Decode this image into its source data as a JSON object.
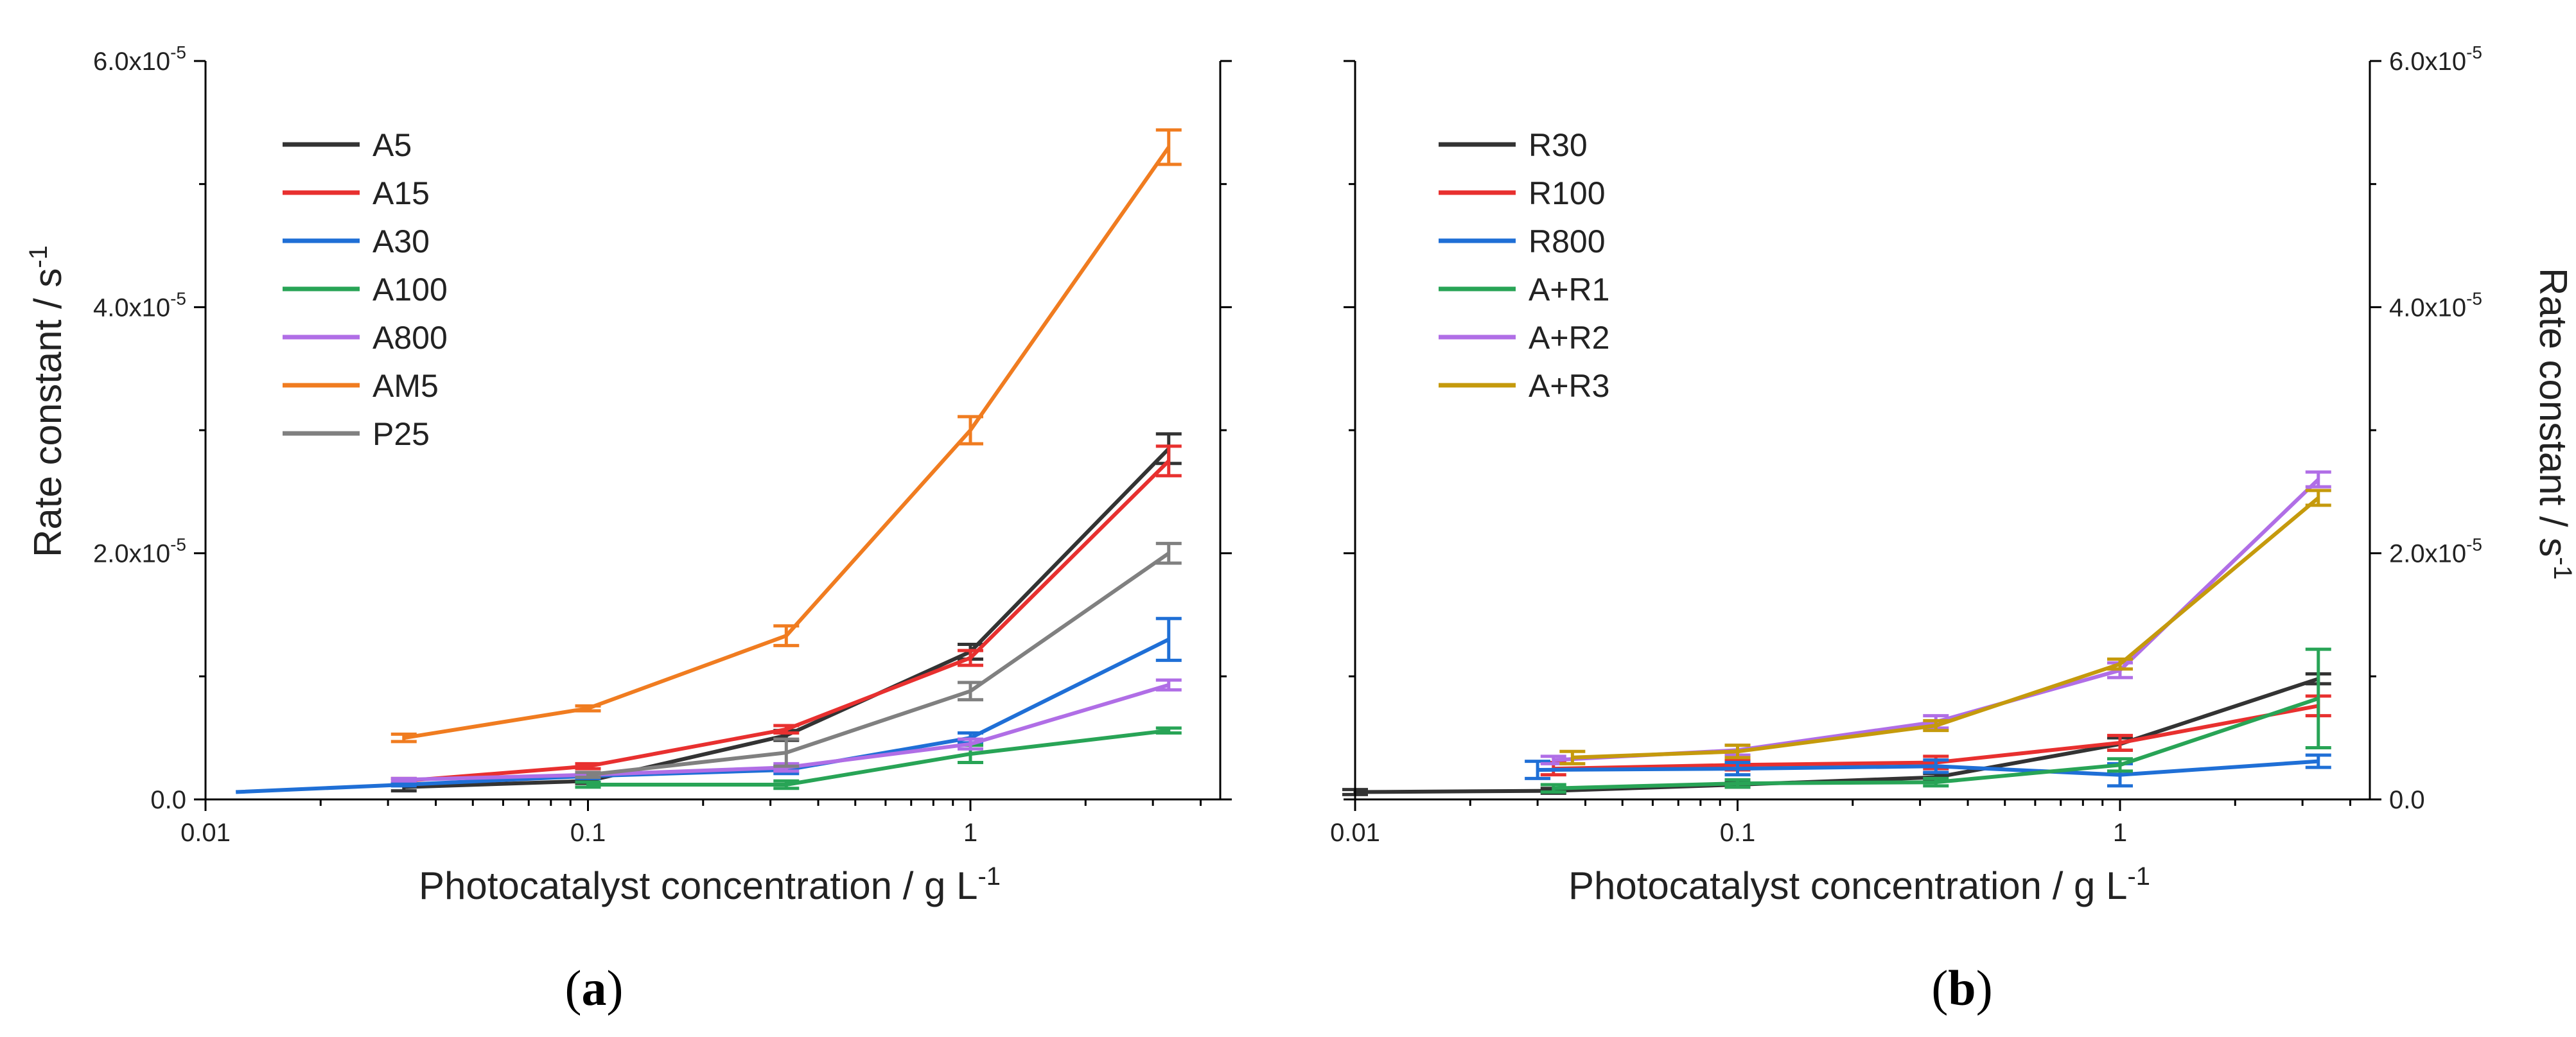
{
  "chart_data": [
    {
      "type": "line",
      "panel_label_open": "(",
      "panel_label_letter": "a",
      "panel_label_close": ")",
      "xlabel": "Photocatalyst concentration / g L",
      "xlabel_sup": "-1",
      "ylabel": "Rate constant / s",
      "ylabel_sup": "-1",
      "x_scale": "log",
      "xlim": [
        0.01,
        4.5
      ],
      "ylim": [
        0,
        6e-05
      ],
      "x_ticks": [
        {
          "v": 0.01,
          "label": "0.01"
        },
        {
          "v": 0.1,
          "label": "0.1"
        },
        {
          "v": 1,
          "label": "1"
        }
      ],
      "y_ticks": [
        {
          "v": 0,
          "label": "0.0",
          "sup": ""
        },
        {
          "v": 2e-05,
          "label": "2.0x10",
          "sup": "-5"
        },
        {
          "v": 4e-05,
          "label": "4.0x10",
          "sup": "-5"
        },
        {
          "v": 6e-05,
          "label": "6.0x10",
          "sup": "-5"
        }
      ],
      "y_axis_side": "left",
      "legend_position": "top-left",
      "series": [
        {
          "name": "A5",
          "color": "#333333",
          "x": [
            0.033,
            0.1,
            0.33,
            1,
            3.3
          ],
          "values": [
            1e-06,
            1.5e-06,
            5.2e-06,
            1.2e-05,
            2.85e-05
          ],
          "err": [
            3e-07,
            2e-07,
            4e-07,
            6e-07,
            1.2e-06
          ]
        },
        {
          "name": "A15",
          "color": "#e8302f",
          "x": [
            0.033,
            0.1,
            0.33,
            1,
            3.3
          ],
          "values": [
            1.5e-06,
            2.7e-06,
            5.7e-06,
            1.15e-05,
            2.75e-05
          ],
          "err": [
            2e-07,
            2e-07,
            3e-07,
            6e-07,
            1.2e-06
          ]
        },
        {
          "name": "A30",
          "color": "#1f6fd6",
          "x": [
            0.012,
            0.033,
            0.1,
            0.33,
            1,
            3.3
          ],
          "values": [
            6e-07,
            1.2e-06,
            1.9e-06,
            2.4e-06,
            5e-06,
            1.3e-05
          ],
          "err": [
            0,
            1e-07,
            2e-07,
            3e-07,
            4e-07,
            1.7e-06
          ]
        },
        {
          "name": "A100",
          "color": "#28a456",
          "x": [
            0.1,
            0.33,
            1,
            3.3
          ],
          "values": [
            1.2e-06,
            1.2e-06,
            3.7e-06,
            5.6e-06
          ],
          "err": [
            2e-07,
            3e-07,
            7e-07,
            2e-07
          ]
        },
        {
          "name": "A800",
          "color": "#b06ee6",
          "x": [
            0.033,
            0.1,
            0.33,
            1,
            3.3
          ],
          "values": [
            1.6e-06,
            2e-06,
            2.6e-06,
            4.5e-06,
            9.3e-06
          ],
          "err": [
            1e-07,
            2e-07,
            3e-07,
            4e-07,
            4e-07
          ]
        },
        {
          "name": "AM5",
          "color": "#f07c20",
          "x": [
            0.033,
            0.1,
            0.33,
            1,
            3.3
          ],
          "values": [
            5e-06,
            7.4e-06,
            1.33e-05,
            3e-05,
            5.3e-05
          ],
          "err": [
            3e-07,
            2e-07,
            8e-07,
            1.1e-06,
            1.4e-06
          ]
        },
        {
          "name": "P25",
          "color": "#808080",
          "x": [
            0.1,
            0.33,
            1,
            3.3
          ],
          "values": [
            2e-06,
            3.8e-06,
            8.8e-06,
            2e-05
          ],
          "err": [
            2e-07,
            1.1e-06,
            7e-07,
            8e-07
          ]
        }
      ]
    },
    {
      "type": "line",
      "panel_label_open": "(",
      "panel_label_letter": "b",
      "panel_label_close": ")",
      "xlabel": "Photocatalyst concentration / g L",
      "xlabel_sup": "-1",
      "ylabel": "Rate constant / s",
      "ylabel_sup": "-1",
      "x_scale": "log",
      "xlim": [
        0.01,
        4.5
      ],
      "ylim": [
        0,
        6e-05
      ],
      "x_ticks": [
        {
          "v": 0.01,
          "label": "0.01"
        },
        {
          "v": 0.1,
          "label": "0.1"
        },
        {
          "v": 1,
          "label": "1"
        }
      ],
      "y_ticks": [
        {
          "v": 0,
          "label": "0.0",
          "sup": ""
        },
        {
          "v": 2e-05,
          "label": "2.0x10",
          "sup": "-5"
        },
        {
          "v": 4e-05,
          "label": "4.0x10",
          "sup": "-5"
        },
        {
          "v": 6e-05,
          "label": "6.0x10",
          "sup": "-5"
        }
      ],
      "y_axis_side": "right",
      "legend_position": "top-left",
      "series": [
        {
          "name": "R30",
          "color": "#333333",
          "x": [
            0.01,
            0.033,
            0.1,
            0.33,
            1,
            3.3
          ],
          "values": [
            6e-07,
            7e-07,
            1.2e-06,
            1.8e-06,
            4.5e-06,
            9.8e-06
          ],
          "err": [
            2e-07,
            2e-07,
            2e-07,
            3e-07,
            5e-07,
            4e-07
          ]
        },
        {
          "name": "R100",
          "color": "#e8302f",
          "x": [
            0.033,
            0.1,
            0.33,
            1,
            3.3
          ],
          "values": [
            2.5e-06,
            2.8e-06,
            3e-06,
            4.6e-06,
            7.6e-06
          ],
          "err": [
            5e-07,
            4e-07,
            5e-07,
            6e-07,
            8e-07
          ]
        },
        {
          "name": "R800",
          "color": "#1f6fd6",
          "x": [
            0.03,
            0.1,
            0.33,
            1,
            3.3
          ],
          "values": [
            2.4e-06,
            2.5e-06,
            2.7e-06,
            2e-06,
            3.1e-06
          ],
          "err": [
            7e-07,
            5e-07,
            5e-07,
            9e-07,
            5e-07
          ]
        },
        {
          "name": "A+R1",
          "color": "#28a456",
          "x": [
            0.033,
            0.1,
            0.33,
            1,
            3.3
          ],
          "values": [
            9e-07,
            1.3e-06,
            1.4e-06,
            2.8e-06,
            8.2e-06
          ],
          "err": [
            3e-07,
            3e-07,
            3e-07,
            5e-07,
            4e-06
          ]
        },
        {
          "name": "A+R2",
          "color": "#b06ee6",
          "x": [
            0.033,
            0.1,
            0.33,
            1,
            3.3
          ],
          "values": [
            3.2e-06,
            4e-06,
            6.3e-06,
            1.05e-05,
            2.6e-05
          ],
          "err": [
            3e-07,
            4e-07,
            5e-07,
            6e-07,
            6e-07
          ]
        },
        {
          "name": "A+R3",
          "color": "#c59a0c",
          "x": [
            0.037,
            0.1,
            0.33,
            1,
            3.3
          ],
          "values": [
            3.4e-06,
            3.9e-06,
            6e-06,
            1.1e-05,
            2.45e-05
          ],
          "err": [
            5e-07,
            5e-07,
            4e-07,
            4e-07,
            6e-07
          ]
        }
      ]
    }
  ]
}
